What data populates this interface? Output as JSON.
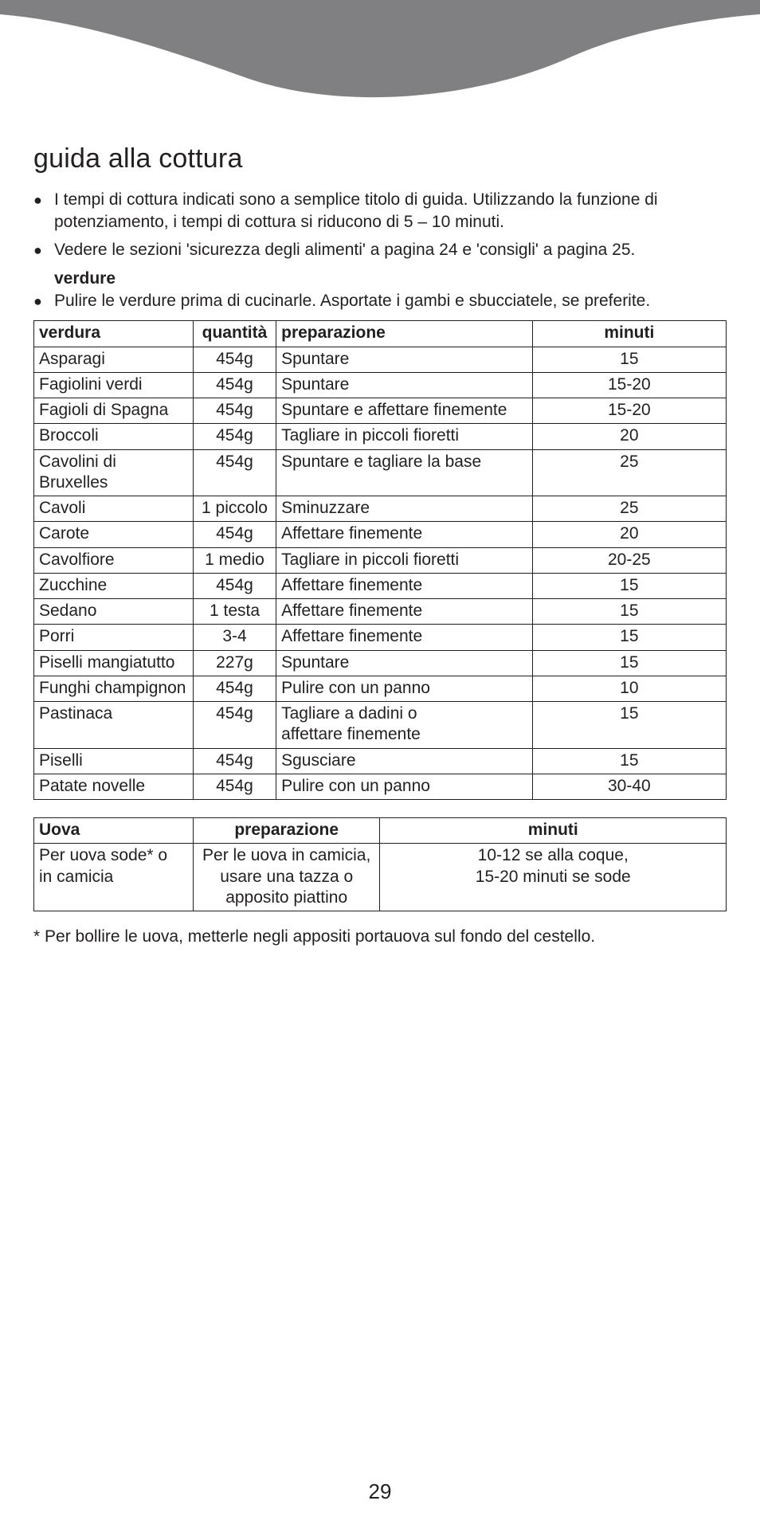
{
  "colors": {
    "header_gray": "#808083",
    "text": "#231f20",
    "bg": "#ffffff",
    "border": "#231f20"
  },
  "title": "guida alla cottura",
  "bullets_top": [
    "I tempi di cottura indicati sono a semplice titolo di guida. Utilizzando la funzione di potenziamento, i tempi di cottura si riducono di 5 – 10 minuti.",
    "Vedere le sezioni 'sicurezza degli alimenti' a pagina 24 e 'consigli' a pagina 25."
  ],
  "section_verdure_label": "verdure",
  "bullets_verdure": [
    "Pulire le verdure prima di cucinarle. Asportate i gambi e sbucciatele, se preferite."
  ],
  "veg_table": {
    "headers": {
      "c1": "verdura",
      "c2": "quantità",
      "c3": "preparazione",
      "c4": "minuti"
    },
    "rows": [
      {
        "name": "Asparagi",
        "qty": "454g",
        "prep": "Spuntare",
        "min": "15"
      },
      {
        "name": "Fagiolini verdi",
        "qty": "454g",
        "prep": "Spuntare",
        "min": "15-20"
      },
      {
        "name": "Fagioli di Spagna",
        "qty": "454g",
        "prep": "Spuntare e affettare finemente",
        "min": "15-20"
      },
      {
        "name": "Broccoli",
        "qty": "454g",
        "prep": "Tagliare in piccoli fioretti",
        "min": "20"
      },
      {
        "name": "Cavolini di Bruxelles",
        "qty": "454g",
        "prep": "Spuntare e tagliare la base",
        "min": "25"
      },
      {
        "name": "Cavoli",
        "qty": "1 piccolo",
        "prep": "Sminuzzare",
        "min": "25"
      },
      {
        "name": "Carote",
        "qty": "454g",
        "prep": "Affettare finemente",
        "min": "20"
      },
      {
        "name": "Cavolfiore",
        "qty": "1 medio",
        "prep": "Tagliare in piccoli fioretti",
        "min": "20-25"
      },
      {
        "name": "Zucchine",
        "qty": "454g",
        "prep": "Affettare finemente",
        "min": "15"
      },
      {
        "name": "Sedano",
        "qty": "1 testa",
        "prep": "Affettare finemente",
        "min": "15"
      },
      {
        "name": "Porri",
        "qty": "3-4",
        "prep": "Affettare finemente",
        "min": "15"
      },
      {
        "name": "Piselli mangiatutto",
        "qty": "227g",
        "prep": "Spuntare",
        "min": "15"
      },
      {
        "name": "Funghi champignon",
        "qty": "454g",
        "prep": "Pulire con un panno",
        "min": "10"
      },
      {
        "name": "Pastinaca",
        "qty": "454g",
        "prep": "Tagliare a dadini o\naffettare finemente",
        "min": "15"
      },
      {
        "name": "Piselli",
        "qty": "454g",
        "prep": "Sgusciare",
        "min": "15"
      },
      {
        "name": "Patate novelle",
        "qty": "454g",
        "prep": "Pulire con un panno",
        "min": "30-40"
      }
    ]
  },
  "egg_table": {
    "headers": {
      "c1": "Uova",
      "c2": "preparazione",
      "c3": "minuti"
    },
    "row": {
      "name": "Per uova sode* o\nin camicia",
      "prep": "Per le uova in camicia,\nusare una tazza o\napposito piattino",
      "min": "10-12 se alla coque,\n15-20 minuti se sode"
    }
  },
  "footnote": "* Per bollire le uova, metterle negli appositi portauova sul fondo del cestello.",
  "page_number": "29"
}
